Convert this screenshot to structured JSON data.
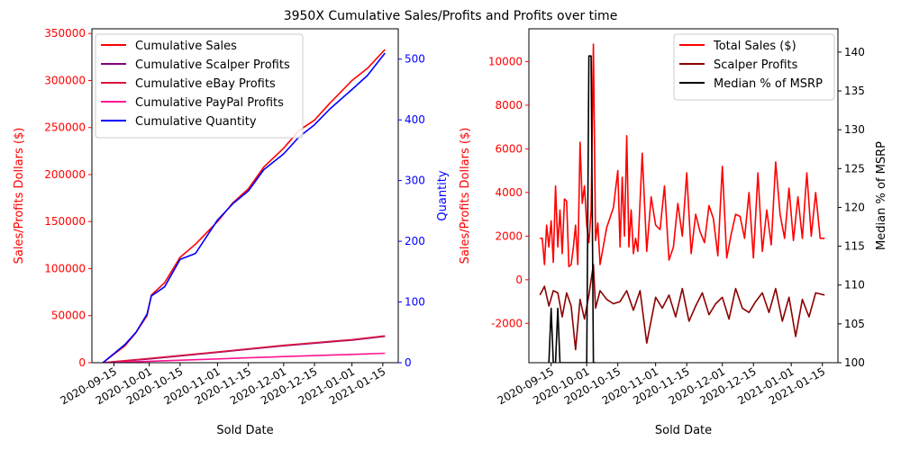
{
  "figure": {
    "suptitle": "3950X Cumulative Sales/Profits and Profits over time"
  },
  "chart_data": [
    {
      "type": "line",
      "xlabel": "Sold Date",
      "ylabel": "Sales/Profits Dollars ($)",
      "ylabel_color": "#ff0000",
      "y2label": "Quantity",
      "y2label_color": "#0000ff",
      "xlim": [
        "2020-09-05",
        "2021-01-22"
      ],
      "ylim": [
        0,
        355000
      ],
      "y2lim": [
        0,
        550
      ],
      "xticks": [
        "2020-09-15",
        "2020-10-01",
        "2020-10-15",
        "2020-11-01",
        "2020-11-15",
        "2020-12-01",
        "2020-12-15",
        "2021-01-01",
        "2021-01-15"
      ],
      "yticks": [
        0,
        50000,
        100000,
        150000,
        200000,
        250000,
        300000,
        350000
      ],
      "y2ticks": [
        0,
        100,
        200,
        300,
        400,
        500
      ],
      "legend_position": "top-left",
      "grid": false,
      "series": [
        {
          "name": "Cumulative Sales",
          "color": "#ff0000",
          "axis": "left",
          "x": [
            "2020-09-10",
            "2020-09-20",
            "2020-09-25",
            "2020-09-30",
            "2020-10-02",
            "2020-10-08",
            "2020-10-15",
            "2020-10-22",
            "2020-11-01",
            "2020-11-08",
            "2020-11-15",
            "2020-11-22",
            "2020-12-01",
            "2020-12-08",
            "2020-12-15",
            "2020-12-22",
            "2021-01-01",
            "2021-01-08",
            "2021-01-16"
          ],
          "values": [
            0,
            18000,
            32000,
            50000,
            72000,
            85000,
            112000,
            126000,
            150000,
            170000,
            185000,
            208000,
            228000,
            247000,
            258000,
            276000,
            300000,
            313000,
            333000
          ]
        },
        {
          "name": "Cumulative Scalper Profits",
          "color": "#800080",
          "axis": "left",
          "x": [
            "2020-09-10",
            "2020-10-01",
            "2020-11-01",
            "2020-12-01",
            "2021-01-01",
            "2021-01-16"
          ],
          "values": [
            0,
            4000,
            11000,
            18000,
            24000,
            28000
          ]
        },
        {
          "name": "Cumulative eBay Profits",
          "color": "#dc143c",
          "axis": "left",
          "x": [
            "2020-09-10",
            "2020-10-01",
            "2020-11-01",
            "2020-12-01",
            "2021-01-01",
            "2021-01-16"
          ],
          "values": [
            0,
            4500,
            11500,
            18500,
            24500,
            28500
          ]
        },
        {
          "name": "Cumulative PayPal Profits",
          "color": "#ff1493",
          "axis": "left",
          "x": [
            "2020-09-10",
            "2020-10-01",
            "2020-11-01",
            "2020-12-01",
            "2021-01-01",
            "2021-01-16"
          ],
          "values": [
            0,
            1500,
            4000,
            6500,
            8800,
            10000
          ]
        },
        {
          "name": "Cumulative Quantity",
          "color": "#0000ff",
          "axis": "right",
          "x": [
            "2020-09-10",
            "2020-09-20",
            "2020-09-25",
            "2020-09-30",
            "2020-10-02",
            "2020-10-08",
            "2020-10-15",
            "2020-10-22",
            "2020-11-01",
            "2020-11-08",
            "2020-11-15",
            "2020-11-22",
            "2020-12-01",
            "2020-12-08",
            "2020-12-15",
            "2020-12-22",
            "2021-01-01",
            "2021-01-08",
            "2021-01-16"
          ],
          "values": [
            0,
            30,
            50,
            80,
            110,
            125,
            170,
            180,
            235,
            262,
            283,
            318,
            344,
            372,
            392,
            418,
            450,
            473,
            510
          ]
        }
      ]
    },
    {
      "type": "line",
      "xlabel": "Sold Date",
      "ylabel": "Sales/Profits Dollars ($)",
      "ylabel_color": "#ff0000",
      "y2label": "Median % of MSRP",
      "y2label_color": "#000000",
      "xlim": [
        "2020-09-05",
        "2021-01-22"
      ],
      "ylim": [
        -3800,
        11500
      ],
      "y2lim": [
        100,
        143
      ],
      "xticks": [
        "2020-09-15",
        "2020-10-01",
        "2020-10-15",
        "2020-11-01",
        "2020-11-15",
        "2020-12-01",
        "2020-12-15",
        "2021-01-01",
        "2021-01-15"
      ],
      "yticks": [
        -2000,
        0,
        2000,
        4000,
        6000,
        8000,
        10000
      ],
      "y2ticks": [
        100,
        105,
        110,
        115,
        120,
        125,
        130,
        135,
        140
      ],
      "legend_position": "top-right",
      "grid": false,
      "series": [
        {
          "name": "Total Sales ($)",
          "color": "#ff0000",
          "axis": "left",
          "x": [
            "2020-09-10",
            "2020-09-11",
            "2020-09-12",
            "2020-09-13",
            "2020-09-14",
            "2020-09-15",
            "2020-09-16",
            "2020-09-17",
            "2020-09-18",
            "2020-09-19",
            "2020-09-20",
            "2020-09-21",
            "2020-09-22",
            "2020-09-23",
            "2020-09-24",
            "2020-09-25",
            "2020-09-26",
            "2020-09-27",
            "2020-09-28",
            "2020-09-29",
            "2020-09-30",
            "2020-10-01",
            "2020-10-02",
            "2020-10-03",
            "2020-10-04",
            "2020-10-05",
            "2020-10-06",
            "2020-10-07",
            "2020-10-10",
            "2020-10-13",
            "2020-10-15",
            "2020-10-16",
            "2020-10-17",
            "2020-10-18",
            "2020-10-19",
            "2020-10-20",
            "2020-10-21",
            "2020-10-22",
            "2020-10-23",
            "2020-10-24",
            "2020-10-26",
            "2020-10-28",
            "2020-10-30",
            "2020-11-01",
            "2020-11-03",
            "2020-11-05",
            "2020-11-07",
            "2020-11-09",
            "2020-11-11",
            "2020-11-13",
            "2020-11-15",
            "2020-11-17",
            "2020-11-19",
            "2020-11-21",
            "2020-11-23",
            "2020-11-25",
            "2020-11-27",
            "2020-11-29",
            "2020-12-01",
            "2020-12-03",
            "2020-12-05",
            "2020-12-07",
            "2020-12-09",
            "2020-12-11",
            "2020-12-13",
            "2020-12-15",
            "2020-12-17",
            "2020-12-19",
            "2020-12-21",
            "2020-12-23",
            "2020-12-25",
            "2020-12-27",
            "2020-12-29",
            "2020-12-31",
            "2021-01-02",
            "2021-01-04",
            "2021-01-06",
            "2021-01-08",
            "2021-01-10",
            "2021-01-12",
            "2021-01-14",
            "2021-01-16"
          ],
          "values": [
            1900,
            1900,
            700,
            2500,
            1500,
            2700,
            800,
            4300,
            1500,
            3200,
            1200,
            3700,
            3600,
            600,
            700,
            1500,
            2500,
            700,
            6300,
            3500,
            4300,
            2500,
            1700,
            3200,
            10800,
            1800,
            2600,
            700,
            2400,
            3300,
            5000,
            1500,
            4700,
            2000,
            6600,
            1500,
            3200,
            1200,
            1900,
            1300,
            5800,
            1300,
            3800,
            2500,
            2300,
            4300,
            900,
            1500,
            3500,
            2000,
            4900,
            1200,
            3000,
            2200,
            1700,
            3400,
            2800,
            1100,
            5200,
            1000,
            2100,
            3000,
            2900,
            1900,
            4000,
            1000,
            4900,
            1300,
            3200,
            1600,
            5400,
            3000,
            1900,
            4200,
            1800,
            3800,
            1900,
            4900,
            2000,
            4000,
            1900,
            1900
          ]
        },
        {
          "name": "Scalper Profits",
          "color": "#8b0000",
          "axis": "left",
          "x": [
            "2020-09-10",
            "2020-09-12",
            "2020-09-14",
            "2020-09-16",
            "2020-09-18",
            "2020-09-20",
            "2020-09-22",
            "2020-09-24",
            "2020-09-26",
            "2020-09-28",
            "2020-09-30",
            "2020-10-02",
            "2020-10-04",
            "2020-10-05",
            "2020-10-07",
            "2020-10-10",
            "2020-10-13",
            "2020-10-16",
            "2020-10-19",
            "2020-10-22",
            "2020-10-25",
            "2020-10-28",
            "2020-11-01",
            "2020-11-04",
            "2020-11-07",
            "2020-11-10",
            "2020-11-13",
            "2020-11-16",
            "2020-11-19",
            "2020-11-22",
            "2020-11-25",
            "2020-11-28",
            "2020-12-01",
            "2020-12-04",
            "2020-12-07",
            "2020-12-10",
            "2020-12-13",
            "2020-12-16",
            "2020-12-19",
            "2020-12-22",
            "2020-12-25",
            "2020-12-28",
            "2020-12-31",
            "2021-01-03",
            "2021-01-06",
            "2021-01-09",
            "2021-01-12",
            "2021-01-16"
          ],
          "values": [
            -700,
            -300,
            -1200,
            -500,
            -600,
            -1700,
            -600,
            -1200,
            -3200,
            -900,
            -1800,
            -700,
            700,
            -1300,
            -500,
            -900,
            -1100,
            -1000,
            -500,
            -1400,
            -500,
            -2900,
            -800,
            -1300,
            -700,
            -1700,
            -400,
            -1900,
            -1200,
            -600,
            -1600,
            -1100,
            -800,
            -1800,
            -400,
            -1300,
            -1500,
            -1000,
            -600,
            -1500,
            -400,
            -1900,
            -800,
            -2600,
            -900,
            -1700,
            -600,
            -700
          ]
        },
        {
          "name": "Median % of MSRP",
          "color": "#000000",
          "axis": "right",
          "x": [
            "2020-09-14",
            "2020-09-15",
            "2020-09-16",
            "2020-09-17",
            "2020-09-18",
            "2020-09-19",
            "2020-09-20",
            "2020-10-01",
            "2020-10-02",
            "2020-10-03",
            "2020-10-04",
            "2020-10-05"
          ],
          "values": [
            100,
            107,
            100,
            100,
            107,
            100,
            100,
            100,
            139.5,
            139.5,
            100,
            100
          ]
        }
      ]
    }
  ]
}
